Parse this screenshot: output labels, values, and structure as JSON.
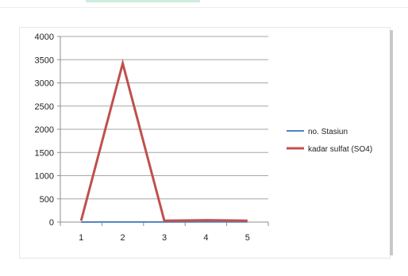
{
  "chart_data": {
    "type": "line",
    "x": [
      1,
      2,
      3,
      4,
      5
    ],
    "categories": [
      "1",
      "2",
      "3",
      "4",
      "5"
    ],
    "series": [
      {
        "name": "no. Stasiun",
        "values": [
          1,
          2,
          3,
          4,
          5
        ],
        "color": "#4f81bd"
      },
      {
        "name": "kadar sulfat  (SO4)",
        "values": [
          30,
          3420,
          30,
          40,
          30
        ],
        "color": "#c0504d"
      }
    ],
    "yticks": [
      "0",
      "500",
      "1000",
      "1500",
      "2000",
      "2500",
      "3000",
      "3500",
      "4000"
    ],
    "ylim": [
      0,
      4000
    ],
    "grid": true,
    "legend_position": "right"
  }
}
